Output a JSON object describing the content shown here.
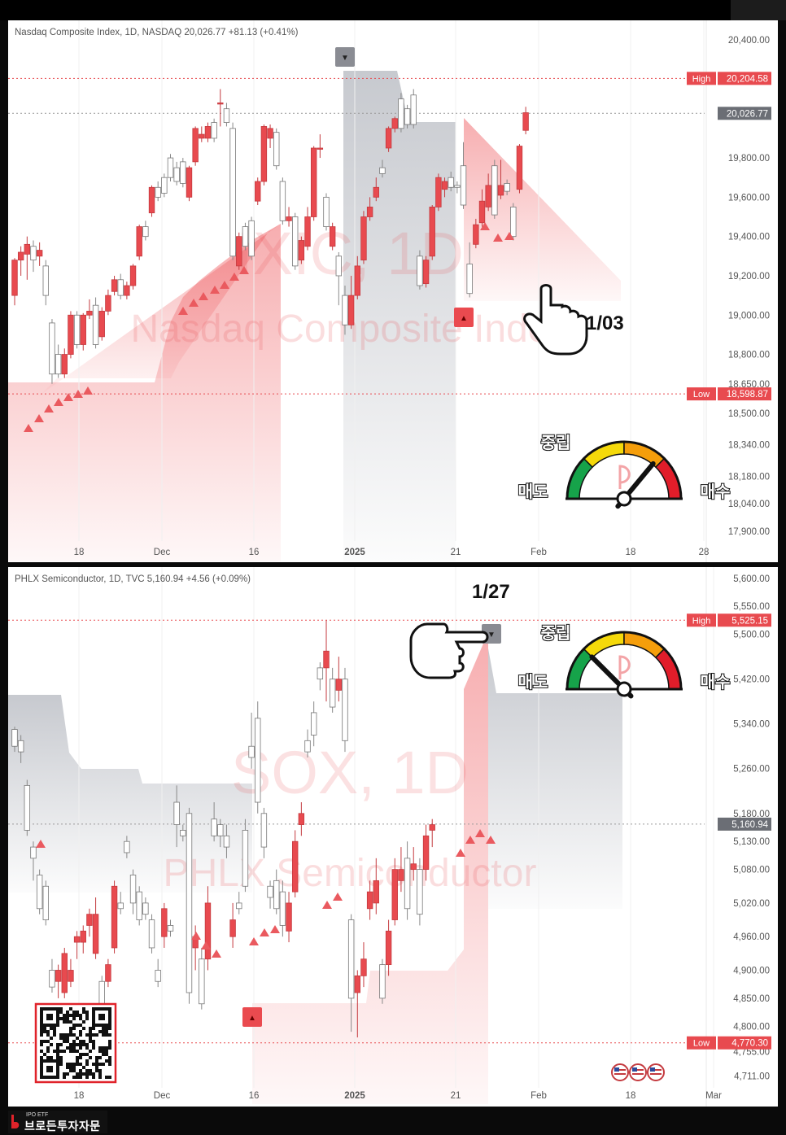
{
  "chart_data": [
    {
      "type": "candlestick",
      "header": "Nasdaq Composite Index, 1D, NASDAQ  20,026.77  +81.13 (+0.41%)",
      "watermark": [
        "IXIC, 1D",
        "Nasdaq Composite Index"
      ],
      "x_ticks": [
        "18",
        "Dec",
        "16",
        "2025",
        "21",
        "Feb",
        "18",
        "28"
      ],
      "y_ticks": [
        20400,
        19800,
        19600,
        19400,
        19200,
        19000,
        18800,
        18650,
        18500,
        18340,
        18180,
        18040,
        17900
      ],
      "ylim": [
        17850,
        20500
      ],
      "high_label": "High",
      "high": 20204.58,
      "low_label": "Low",
      "low": 18598.87,
      "last": 20026.77,
      "candles": [
        [
          19100,
          19280,
          19050,
          19290
        ],
        [
          19280,
          19320,
          19200,
          19350
        ],
        [
          19310,
          19360,
          19180,
          19400
        ],
        [
          19350,
          19280,
          19220,
          19380
        ],
        [
          19300,
          19330,
          19250,
          19370
        ],
        [
          19250,
          19100,
          19050,
          19280
        ],
        [
          18960,
          18700,
          18650,
          18980
        ],
        [
          18800,
          18700,
          18680,
          18850
        ],
        [
          18700,
          18800,
          18680,
          18830
        ],
        [
          18800,
          19000,
          18780,
          19020
        ],
        [
          19000,
          18850,
          18830,
          19020
        ],
        [
          18850,
          19000,
          18820,
          19010
        ],
        [
          19000,
          19020,
          18980,
          19080
        ],
        [
          19050,
          18850,
          18830,
          19090
        ],
        [
          18890,
          19020,
          18870,
          19040
        ],
        [
          19020,
          19100,
          19000,
          19130
        ],
        [
          19120,
          19180,
          19100,
          19200
        ],
        [
          19180,
          19100,
          19080,
          19210
        ],
        [
          19100,
          19150,
          19080,
          19170
        ],
        [
          19150,
          19250,
          19130,
          19260
        ],
        [
          19300,
          19450,
          19280,
          19460
        ],
        [
          19450,
          19400,
          19380,
          19480
        ],
        [
          19520,
          19650,
          19500,
          19660
        ],
        [
          19650,
          19600,
          19580,
          19680
        ],
        [
          19700,
          19620,
          19600,
          19720
        ],
        [
          19800,
          19700,
          19680,
          19820
        ],
        [
          19750,
          19680,
          19660,
          19780
        ],
        [
          19780,
          19670,
          19650,
          19800
        ],
        [
          19600,
          19750,
          19580,
          19760
        ],
        [
          19780,
          19950,
          19760,
          19960
        ],
        [
          19900,
          19920,
          19880,
          19960
        ],
        [
          19900,
          19960,
          19880,
          19980
        ],
        [
          19980,
          19900,
          19880,
          20000
        ],
        [
          20080,
          20080,
          19960,
          20150
        ],
        [
          20050,
          19980,
          19960,
          20080
        ],
        [
          19950,
          19300,
          19280,
          19980
        ],
        [
          19250,
          19400,
          19230,
          19420
        ],
        [
          19450,
          19350,
          19330,
          19470
        ],
        [
          19480,
          19300,
          19280,
          19500
        ],
        [
          19580,
          19680,
          19560,
          19700
        ],
        [
          19680,
          19960,
          19660,
          19970
        ],
        [
          19900,
          19950,
          19850,
          19970
        ],
        [
          19930,
          19760,
          19740,
          19950
        ],
        [
          19680,
          19480,
          19460,
          19700
        ],
        [
          19480,
          19500,
          19450,
          19550
        ],
        [
          19500,
          19250,
          19230,
          19520
        ],
        [
          19280,
          19380,
          19260,
          19400
        ],
        [
          19350,
          19500,
          19330,
          19550
        ],
        [
          19500,
          19850,
          19480,
          19860
        ],
        [
          19850,
          19850,
          19800,
          19920
        ],
        [
          19600,
          19450,
          19430,
          19620
        ],
        [
          19350,
          19450,
          19330,
          19470
        ],
        [
          19300,
          19200,
          19050,
          19320
        ],
        [
          19100,
          18950,
          18900,
          19150
        ],
        [
          18950,
          19100,
          18930,
          19200
        ],
        [
          19100,
          19250,
          19080,
          19300
        ],
        [
          19280,
          19500,
          19260,
          19530
        ],
        [
          19500,
          19550,
          19480,
          19600
        ],
        [
          19600,
          19650,
          19580,
          19700
        ],
        [
          19750,
          19720,
          19700,
          19790
        ],
        [
          19850,
          19950,
          19830,
          19960
        ],
        [
          19950,
          20000,
          19930,
          20010
        ],
        [
          20100,
          19950,
          19930,
          20130
        ],
        [
          20050,
          19970,
          19950,
          20070
        ],
        [
          20120,
          19970,
          19950,
          20150
        ],
        [
          19300,
          19150,
          19130,
          19330
        ],
        [
          19160,
          19280,
          19140,
          19300
        ],
        [
          19300,
          19550,
          19280,
          19560
        ],
        [
          19550,
          19700,
          19530,
          19720
        ],
        [
          19640,
          19680,
          19600,
          19700
        ],
        [
          19700,
          19650,
          19630,
          19730
        ],
        [
          19660,
          19650,
          19620,
          19680
        ],
        [
          19760,
          19560,
          19540,
          19880
        ],
        [
          19260,
          19110,
          19090,
          19370
        ],
        [
          19360,
          19460,
          19340,
          19490
        ],
        [
          19470,
          19580,
          19450,
          19640
        ],
        [
          19550,
          19660,
          19530,
          19720
        ],
        [
          19760,
          19510,
          19490,
          19790
        ],
        [
          19610,
          19660,
          19590,
          19790
        ],
        [
          19670,
          19630,
          19610,
          19690
        ],
        [
          19550,
          19400,
          19380,
          19570
        ],
        [
          19640,
          19860,
          19620,
          19870
        ],
        [
          19940,
          20030,
          19920,
          20060
        ]
      ]
    },
    {
      "type": "candlestick",
      "header": "PHLX Semiconductor, 1D, TVC  5,160.94  +4.56 (+0.09%)",
      "watermark": [
        "SOX, 1D",
        "PHLX Semiconductor"
      ],
      "x_ticks": [
        "18",
        "Dec",
        "16",
        "2025",
        "21",
        "Feb",
        "18",
        "Mar"
      ],
      "y_ticks": [
        5600,
        5550,
        5500,
        5420,
        5340,
        5260,
        5180,
        5130,
        5080,
        5020,
        4960,
        4900,
        4850,
        4800,
        4755,
        4711
      ],
      "ylim": [
        4690,
        5620
      ],
      "high_label": "High",
      "high": 5525.15,
      "low_label": "Low",
      "low": 4770.3,
      "last": 5160.94,
      "candles": [
        [
          5330,
          5300,
          5290,
          5335
        ],
        [
          5310,
          5290,
          5270,
          5320
        ],
        [
          5230,
          5150,
          5140,
          5240
        ],
        [
          5120,
          5100,
          5060,
          5130
        ],
        [
          5070,
          5010,
          5000,
          5080
        ],
        [
          5050,
          4990,
          4980,
          5060
        ],
        [
          4900,
          4870,
          4860,
          4920
        ],
        [
          4880,
          4900,
          4850,
          4910
        ],
        [
          4860,
          4930,
          4850,
          4940
        ],
        [
          4880,
          4900,
          4870,
          4920
        ],
        [
          4950,
          4960,
          4920,
          4970
        ],
        [
          4950,
          4970,
          4930,
          4980
        ],
        [
          4980,
          5000,
          4960,
          5010
        ],
        [
          4930,
          5000,
          4920,
          5030
        ],
        [
          4880,
          4830,
          4770,
          4890
        ],
        [
          4880,
          4910,
          4870,
          4920
        ],
        [
          4940,
          5050,
          4930,
          5060
        ],
        [
          5020,
          5010,
          5000,
          5040
        ],
        [
          5130,
          5110,
          5100,
          5140
        ],
        [
          5070,
          5020,
          5000,
          5080
        ],
        [
          5040,
          4990,
          4980,
          5050
        ],
        [
          5020,
          5000,
          4990,
          5030
        ],
        [
          4990,
          4940,
          4930,
          5000
        ],
        [
          4900,
          4880,
          4870,
          4920
        ],
        [
          4960,
          5010,
          4940,
          5020
        ],
        [
          4980,
          4970,
          4960,
          4990
        ],
        [
          5200,
          5160,
          5120,
          5230
        ],
        [
          5150,
          5140,
          5130,
          5160
        ],
        [
          5180,
          4860,
          4840,
          5190
        ],
        [
          4940,
          4960,
          4900,
          4980
        ],
        [
          4920,
          4840,
          4830,
          4940
        ],
        [
          4920,
          5020,
          4900,
          5050
        ],
        [
          5170,
          5140,
          5130,
          5200
        ],
        [
          5160,
          5140,
          5120,
          5170
        ],
        [
          5140,
          5120,
          5100,
          5160
        ],
        [
          4960,
          4990,
          4940,
          5020
        ],
        [
          5020,
          5010,
          5000,
          5040
        ],
        [
          5150,
          5050,
          5040,
          5170
        ],
        [
          5300,
          5280,
          5260,
          5360
        ],
        [
          5350,
          5200,
          5180,
          5380
        ],
        [
          5180,
          5120,
          5100,
          5190
        ],
        [
          5050,
          5030,
          5010,
          5060
        ],
        [
          5060,
          5010,
          5000,
          5080
        ],
        [
          5040,
          4980,
          4960,
          5060
        ],
        [
          4970,
          5020,
          4950,
          5040
        ],
        [
          5040,
          5130,
          5030,
          5150
        ],
        [
          5160,
          5180,
          5140,
          5200
        ],
        [
          5310,
          5290,
          5280,
          5330
        ],
        [
          5360,
          5320,
          5300,
          5380
        ],
        [
          5440,
          5420,
          5400,
          5450
        ],
        [
          5440,
          5470,
          5380,
          5525
        ],
        [
          5420,
          5370,
          5360,
          5440
        ],
        [
          5400,
          5420,
          5380,
          5460
        ],
        [
          5420,
          5310,
          5290,
          5440
        ],
        [
          4990,
          4850,
          4790,
          5000
        ],
        [
          4860,
          4890,
          4780,
          4900
        ],
        [
          4890,
          4920,
          4870,
          4950
        ],
        [
          5010,
          5040,
          4990,
          5060
        ],
        [
          5020,
          5060,
          5000,
          5100
        ],
        [
          4910,
          4850,
          4840,
          4920
        ],
        [
          4910,
          4970,
          4890,
          4990
        ],
        [
          4990,
          5080,
          4980,
          5100
        ],
        [
          5060,
          5080,
          5040,
          5120
        ],
        [
          5100,
          5010,
          4990,
          5130
        ],
        [
          5080,
          5090,
          5060,
          5120
        ],
        [
          5080,
          5000,
          4980,
          5100
        ],
        [
          5080,
          5140,
          5060,
          5160
        ],
        [
          5150,
          5160,
          5120,
          5170
        ]
      ]
    }
  ],
  "gauges": [
    {
      "top_label": "중립",
      "left_label": "매도",
      "right_label": "매수",
      "needle": 0.72
    },
    {
      "top_label": "중립",
      "left_label": "매도",
      "right_label": "매수",
      "needle": 0.25
    }
  ],
  "annotations": [
    {
      "text": "1/03"
    },
    {
      "text": "1/27"
    }
  ],
  "brand": {
    "sub": "IPO ETF",
    "main": "브로든투자자문"
  },
  "colors": {
    "up": "#e84a4f",
    "down": "#ffffff",
    "buy_zone": "#f06b6f",
    "sell_zone": "#b9bcc3",
    "text": "#555555"
  }
}
